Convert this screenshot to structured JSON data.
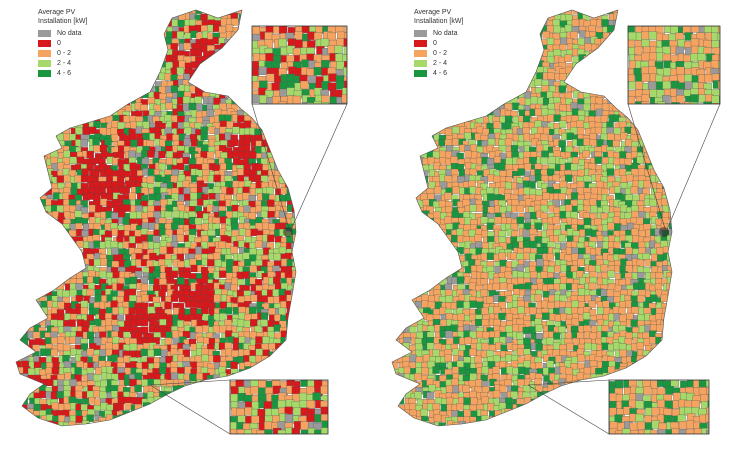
{
  "legend": {
    "title_line1": "Average PV",
    "title_line2": "Installation [kW]",
    "items": [
      {
        "label": "No data",
        "color": "#9a9a9a"
      },
      {
        "label": "0",
        "color": "#d7191c"
      },
      {
        "label": "0 - 2",
        "color": "#f4a460"
      },
      {
        "label": "2 - 4",
        "color": "#a6d96a"
      },
      {
        "label": "4 - 6",
        "color": "#1a9641"
      }
    ]
  },
  "maps": [
    {
      "id": "left",
      "mix": {
        "grey": 0.08,
        "red": 0.22,
        "orange": 0.32,
        "lightgreen": 0.23,
        "darkgreen": 0.15
      }
    },
    {
      "id": "right",
      "mix": {
        "grey": 0.07,
        "red": 0.0,
        "orange": 0.52,
        "lightgreen": 0.26,
        "darkgreen": 0.15
      }
    }
  ]
}
